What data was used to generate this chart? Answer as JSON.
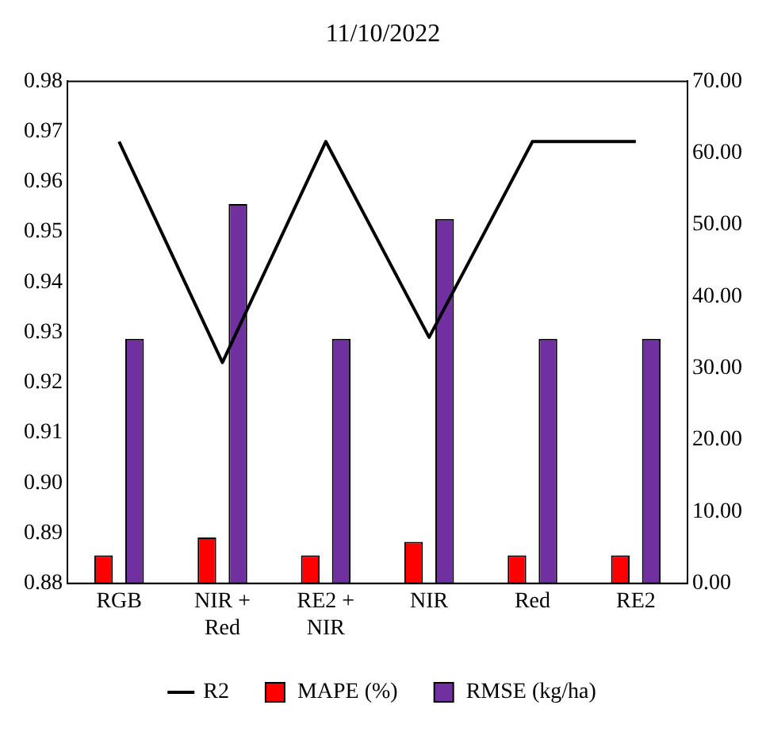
{
  "chart_data": {
    "type": "bar",
    "title": "11/10/2022",
    "categories": [
      "RGB",
      "NIR + Red",
      "RE2 + NIR",
      "NIR",
      "Red",
      "RE2"
    ],
    "series": [
      {
        "name": "MAPE (%)",
        "color": "#ff0000",
        "axis": "y2",
        "values": [
          3.9,
          6.4,
          3.9,
          5.8,
          3.9,
          3.9
        ]
      },
      {
        "name": "RMSE (kg/ha)",
        "color": "#7030a0",
        "axis": "y2",
        "values": [
          34.1,
          52.9,
          34.1,
          50.8,
          34.1,
          34.1
        ]
      },
      {
        "name": "R2",
        "type": "line",
        "color": "#000000",
        "axis": "y",
        "values": [
          0.968,
          0.924,
          0.968,
          0.929,
          0.968,
          0.968
        ]
      }
    ],
    "ylim": [
      0.88,
      0.98
    ],
    "yticks": [
      0.88,
      0.89,
      {
        "value": 0.9,
        "label": "0.90"
      },
      0.91,
      0.92,
      0.93,
      0.94,
      0.95,
      0.96,
      0.97,
      0.98
    ],
    "y2lim": [
      0,
      70
    ],
    "y2ticks": [
      {
        "value": 0,
        "label": "0.00"
      },
      {
        "value": 10,
        "label": "10.00"
      },
      {
        "value": 20,
        "label": "20.00"
      },
      {
        "value": 30,
        "label": "30.00"
      },
      {
        "value": 40,
        "label": "40.00"
      },
      {
        "value": 50,
        "label": "50.00"
      },
      {
        "value": 60,
        "label": "60.00"
      },
      {
        "value": 70,
        "label": "70.00"
      }
    ],
    "grid": false,
    "legend": "bottom",
    "marker": "none"
  }
}
